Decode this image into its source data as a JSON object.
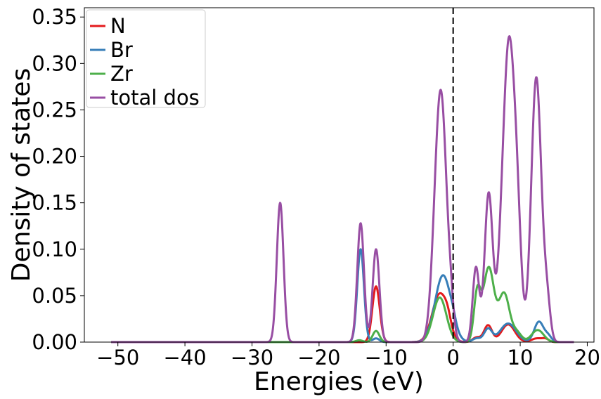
{
  "chart_data": {
    "type": "line",
    "title": "",
    "xlabel": "Energies (eV)",
    "ylabel": "Density of states",
    "xlim": [
      -55,
      21
    ],
    "ylim": [
      0,
      0.36
    ],
    "xticks": [
      -50,
      -40,
      -30,
      -20,
      -10,
      0,
      10,
      20
    ],
    "xtick_labels": [
      "−50",
      "−40",
      "−30",
      "−20",
      "−10",
      "0",
      "10",
      "20"
    ],
    "yticks": [
      0.0,
      0.05,
      0.1,
      0.15,
      0.2,
      0.25,
      0.3,
      0.35
    ],
    "ytick_labels": [
      "0.00",
      "0.05",
      "0.10",
      "0.15",
      "0.20",
      "0.25",
      "0.30",
      "0.35"
    ],
    "grid": false,
    "legend_position": "upper-left",
    "fermi_level": {
      "x": 0,
      "style": "dashed",
      "color": "#000000"
    },
    "x_range": [
      -51,
      18
    ],
    "series": [
      {
        "name": "N",
        "color": "#e41a1c",
        "peaks": [
          [
            -11.5,
            0.06,
            0.55
          ],
          [
            -2.0,
            0.052,
            1.1
          ],
          [
            -0.8,
            0.01,
            0.5
          ],
          [
            3.5,
            0.005,
            0.6
          ],
          [
            5.2,
            0.018,
            0.6
          ],
          [
            8.2,
            0.019,
            1.0
          ],
          [
            12.5,
            0.004,
            0.8
          ],
          [
            13.8,
            0.003,
            0.5
          ]
        ]
      },
      {
        "name": "Br",
        "color": "#377eb8",
        "peaks": [
          [
            -13.8,
            0.1,
            0.5
          ],
          [
            -11.5,
            0.004,
            0.5
          ],
          [
            -1.5,
            0.072,
            1.2
          ],
          [
            0.0,
            0.005,
            0.4
          ],
          [
            3.5,
            0.004,
            0.6
          ],
          [
            5.2,
            0.014,
            0.6
          ],
          [
            8.2,
            0.02,
            1.2
          ],
          [
            12.8,
            0.022,
            0.7
          ],
          [
            14.2,
            0.006,
            0.5
          ]
        ]
      },
      {
        "name": "Zr",
        "color": "#4daf4a",
        "peaks": [
          [
            -14.0,
            0.002,
            0.5
          ],
          [
            -11.5,
            0.012,
            0.5
          ],
          [
            -2.0,
            0.048,
            1.0
          ],
          [
            3.6,
            0.052,
            0.5
          ],
          [
            5.3,
            0.08,
            0.8
          ],
          [
            7.6,
            0.052,
            0.8
          ],
          [
            9.5,
            0.01,
            0.7
          ],
          [
            12.6,
            0.013,
            0.9
          ]
        ]
      },
      {
        "name": "total dos",
        "color": "#984ea3",
        "peaks": [
          [
            -25.8,
            0.15,
            0.5
          ],
          [
            -13.8,
            0.128,
            0.5
          ],
          [
            -11.5,
            0.1,
            0.5
          ],
          [
            -2.8,
            0.03,
            0.7
          ],
          [
            -1.8,
            0.26,
            0.85
          ],
          [
            -0.3,
            0.02,
            0.4
          ],
          [
            3.4,
            0.08,
            0.48
          ],
          [
            5.3,
            0.16,
            0.6
          ],
          [
            7.0,
            0.02,
            0.5
          ],
          [
            8.3,
            0.32,
            0.9
          ],
          [
            9.6,
            0.08,
            0.6
          ],
          [
            12.4,
            0.285,
            0.75
          ],
          [
            14.0,
            0.04,
            0.5
          ]
        ]
      }
    ]
  }
}
